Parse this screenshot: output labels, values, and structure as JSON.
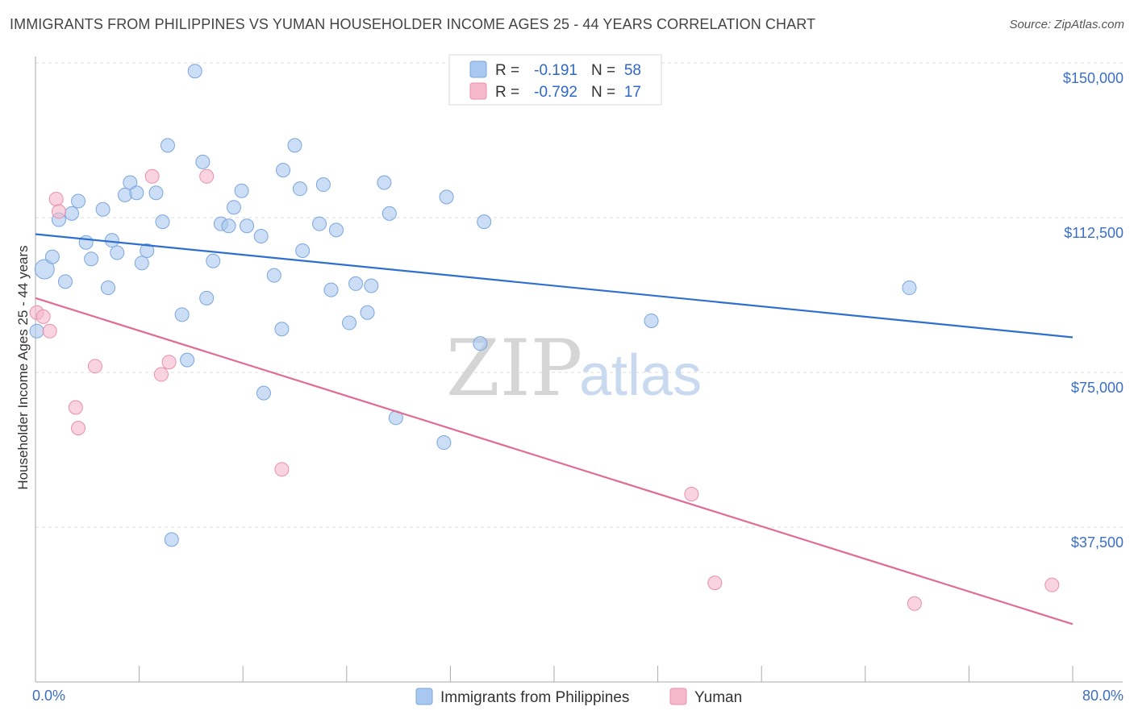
{
  "header": {
    "title": "IMMIGRANTS FROM PHILIPPINES VS YUMAN HOUSEHOLDER INCOME AGES 25 - 44 YEARS CORRELATION CHART",
    "source": "Source: ZipAtlas.com"
  },
  "watermark": {
    "zip": "ZIP",
    "atlas": "atlas"
  },
  "legend": {
    "r_label": "R =",
    "n_label": "N =",
    "rows": [
      {
        "r": "-0.191",
        "n": "58",
        "color": "#a8c8ef"
      },
      {
        "r": "-0.792",
        "n": "17",
        "color": "#f5b8cb"
      }
    ]
  },
  "colors": {
    "blue_fill": "#a8c8ef",
    "blue_line": "#2e6fd0",
    "pink_fill": "#f5b8cb",
    "pink_line": "#e06c94",
    "tick_text": "#3b6fc4",
    "grid": "#dddddd"
  },
  "chart_data": {
    "type": "scatter",
    "title": "IMMIGRANTS FROM PHILIPPINES VS YUMAN HOUSEHOLDER INCOME AGES 25 - 44 YEARS CORRELATION CHART",
    "xlabel": "",
    "ylabel": "Householder Income Ages 25 - 44 years",
    "xlim": [
      0,
      80
    ],
    "ylim": [
      0,
      155000
    ],
    "x_tick_labels": [
      "0.0%",
      "80.0%"
    ],
    "y_ticks": [
      37500,
      75000,
      112500,
      150000
    ],
    "y_tick_labels": [
      "$37,500",
      "$75,000",
      "$112,500",
      "$150,000"
    ],
    "grid": true,
    "legend_position": "bottom",
    "series": [
      {
        "name": "Immigrants from Philippines",
        "color": "#a8c8ef",
        "points": [
          [
            0.1,
            85000
          ],
          [
            0.7,
            100000
          ],
          [
            1.3,
            103000
          ],
          [
            1.8,
            112000
          ],
          [
            2.3,
            97000
          ],
          [
            2.8,
            113500
          ],
          [
            3.3,
            116500
          ],
          [
            3.9,
            106500
          ],
          [
            4.3,
            102500
          ],
          [
            5.2,
            114500
          ],
          [
            5.6,
            95500
          ],
          [
            5.9,
            107000
          ],
          [
            6.3,
            104000
          ],
          [
            6.9,
            118000
          ],
          [
            7.3,
            121000
          ],
          [
            7.8,
            118500
          ],
          [
            8.2,
            101500
          ],
          [
            8.6,
            104500
          ],
          [
            9.3,
            118500
          ],
          [
            9.8,
            111500
          ],
          [
            10.2,
            130000
          ],
          [
            11.3,
            89000
          ],
          [
            11.7,
            78000
          ],
          [
            12.3,
            148000
          ],
          [
            12.9,
            126000
          ],
          [
            13.2,
            93000
          ],
          [
            13.7,
            102000
          ],
          [
            14.3,
            111000
          ],
          [
            14.9,
            110500
          ],
          [
            15.3,
            115000
          ],
          [
            15.9,
            119000
          ],
          [
            16.3,
            110500
          ],
          [
            17.4,
            108000
          ],
          [
            17.6,
            70000
          ],
          [
            18.4,
            98500
          ],
          [
            19.0,
            85500
          ],
          [
            19.1,
            124000
          ],
          [
            20.0,
            130000
          ],
          [
            20.4,
            119500
          ],
          [
            20.6,
            104500
          ],
          [
            21.9,
            111000
          ],
          [
            22.2,
            120500
          ],
          [
            22.8,
            95000
          ],
          [
            23.2,
            109500
          ],
          [
            24.2,
            87000
          ],
          [
            24.7,
            96500
          ],
          [
            25.6,
            89500
          ],
          [
            25.9,
            96000
          ],
          [
            26.9,
            121000
          ],
          [
            27.3,
            113500
          ],
          [
            27.8,
            64000
          ],
          [
            31.7,
            117500
          ],
          [
            31.5,
            58000
          ],
          [
            34.3,
            82000
          ],
          [
            34.6,
            111500
          ],
          [
            47.5,
            87500
          ],
          [
            67.4,
            95500
          ],
          [
            10.5,
            34500
          ]
        ]
      },
      {
        "name": "Yuman",
        "color": "#f5b8cb",
        "points": [
          [
            0.1,
            89500
          ],
          [
            0.6,
            88500
          ],
          [
            1.1,
            85000
          ],
          [
            1.6,
            117000
          ],
          [
            1.8,
            114000
          ],
          [
            4.6,
            76500
          ],
          [
            3.1,
            66500
          ],
          [
            3.3,
            61500
          ],
          [
            9.0,
            122500
          ],
          [
            9.7,
            74500
          ],
          [
            10.3,
            77500
          ],
          [
            13.2,
            122500
          ],
          [
            19.0,
            51500
          ],
          [
            50.6,
            45500
          ],
          [
            52.4,
            24000
          ],
          [
            67.8,
            19000
          ],
          [
            78.4,
            23500
          ]
        ]
      }
    ],
    "trend_lines": [
      {
        "series": "Immigrants from Philippines",
        "x": [
          0,
          80
        ],
        "y": [
          108500,
          83500
        ]
      },
      {
        "series": "Yuman",
        "x": [
          0,
          80
        ],
        "y": [
          93000,
          14000
        ]
      }
    ]
  },
  "bottom_legend": [
    {
      "label": "Immigrants from Philippines",
      "color": "#a8c8ef"
    },
    {
      "label": "Yuman",
      "color": "#f5b8cb"
    }
  ]
}
